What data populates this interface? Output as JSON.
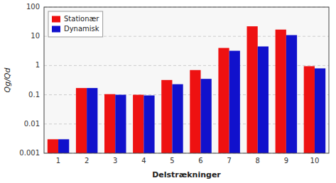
{
  "chart_data": {
    "type": "bar",
    "categories": [
      "1",
      "2",
      "3",
      "4",
      "5",
      "6",
      "7",
      "8",
      "9",
      "10"
    ],
    "series": [
      {
        "name": "Stationær",
        "color": "#ee1111",
        "values": [
          0.003,
          0.17,
          0.105,
          0.1,
          0.32,
          0.7,
          4.0,
          22.0,
          17.0,
          0.95
        ]
      },
      {
        "name": "Dynamisk",
        "color": "#1111cc",
        "values": [
          0.003,
          0.17,
          0.1,
          0.095,
          0.23,
          0.35,
          3.2,
          4.5,
          11.0,
          0.8
        ]
      }
    ],
    "xlabel": "Delstrækninger",
    "ylabel": "Qg/Qd",
    "ylim": [
      0.001,
      100
    ],
    "yticks": [
      0.001,
      0.01,
      0.1,
      1,
      10,
      100
    ],
    "log": "y",
    "grid": true,
    "legend": "upper left"
  }
}
